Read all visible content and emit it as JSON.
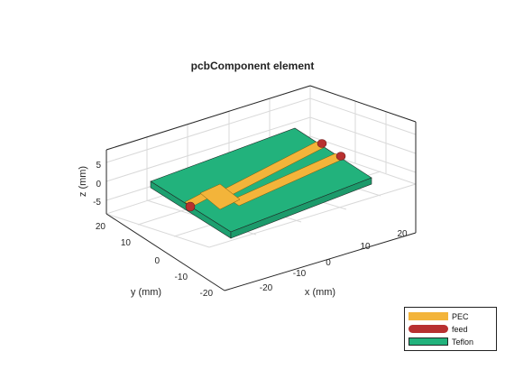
{
  "figure": {
    "title": "pcbComponent element",
    "axes": {
      "x": {
        "label": "x (mm)",
        "ticks": [
          "-20",
          "-10",
          "0",
          "10",
          "20"
        ],
        "range": [
          -25,
          25
        ]
      },
      "y": {
        "label": "y (mm)",
        "ticks": [
          "-20",
          "-10",
          "0",
          "10",
          "20"
        ],
        "range": [
          -25,
          25
        ]
      },
      "z": {
        "label": "z (mm)",
        "ticks": [
          "-5",
          "0",
          "5"
        ],
        "range": [
          -7.5,
          7.5
        ]
      },
      "grid": true
    },
    "legend": {
      "placement": "bottom-right",
      "items": [
        {
          "label": "PEC",
          "color": "#f3b43a"
        },
        {
          "label": "feed",
          "color": "#b83030"
        },
        {
          "label": "Teflon",
          "color": "#22b27c"
        }
      ]
    },
    "colors": {
      "axis": "#262626",
      "grid": "#d9d9d9",
      "tick_text": "#262626"
    }
  }
}
